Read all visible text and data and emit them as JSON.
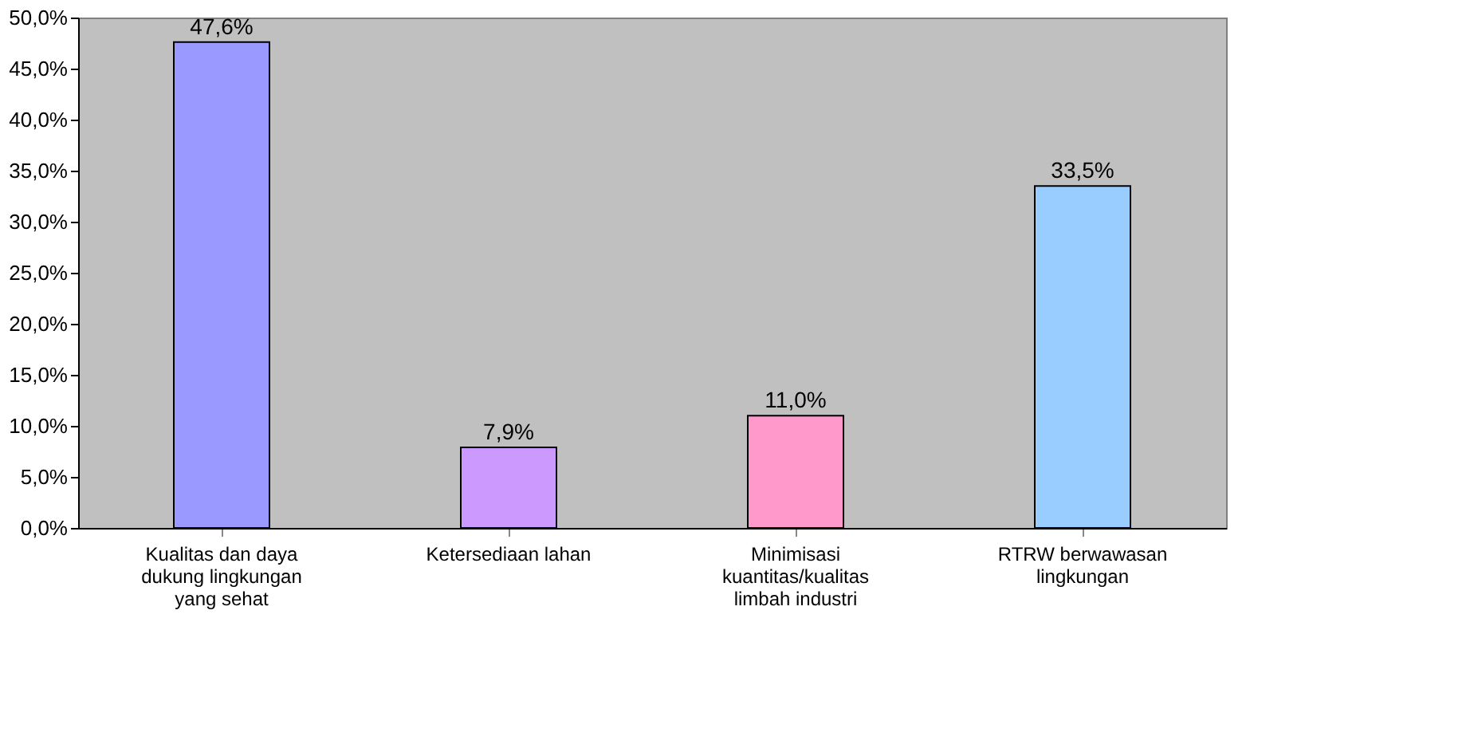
{
  "chart_data": {
    "type": "bar",
    "categories": [
      "Kualitas dan daya dukung lingkungan yang sehat",
      "Ketersediaan lahan",
      "Minimisasi kuantitas/kualitas limbah industri",
      "RTRW berwawasan lingkungan"
    ],
    "values": [
      47.6,
      7.9,
      11.0,
      33.5
    ],
    "colors": [
      "#9999ff",
      "#cc99ff",
      "#ff99cc",
      "#99ccff"
    ],
    "value_labels": [
      "47,6%",
      "7,9%",
      "11,0%",
      "33,5%"
    ],
    "ylim": [
      0,
      50
    ],
    "yticks": [
      {
        "value": 0,
        "label": "0,0%"
      },
      {
        "value": 5,
        "label": "5,0%"
      },
      {
        "value": 10,
        "label": "10,0%"
      },
      {
        "value": 15,
        "label": "15,0%"
      },
      {
        "value": 20,
        "label": "20,0%"
      },
      {
        "value": 25,
        "label": "25,0%"
      },
      {
        "value": 30,
        "label": "30,0%"
      },
      {
        "value": 35,
        "label": "35,0%"
      },
      {
        "value": 40,
        "label": "40,0%"
      },
      {
        "value": 45,
        "label": "45,0%"
      },
      {
        "value": 50,
        "label": "50,0%"
      }
    ],
    "grid": false
  }
}
